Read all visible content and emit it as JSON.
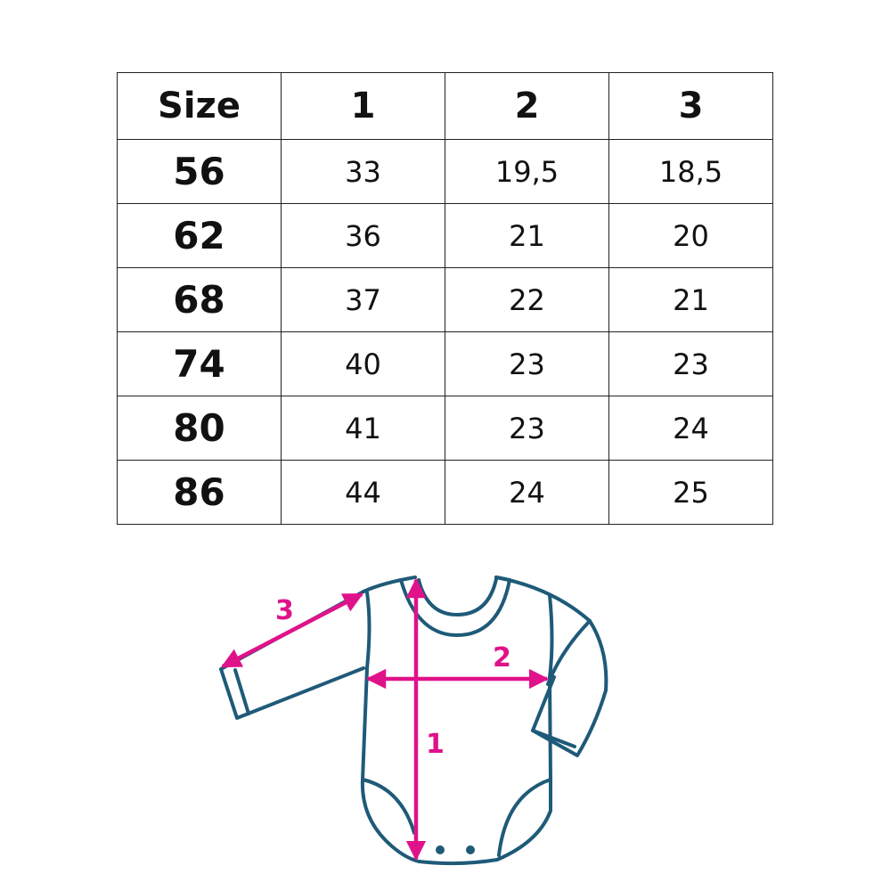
{
  "table": {
    "headers": [
      "Size",
      "1",
      "2",
      "3"
    ],
    "rows": [
      [
        "56",
        "33",
        "19,5",
        "18,5"
      ],
      [
        "62",
        "36",
        "21",
        "20"
      ],
      [
        "68",
        "37",
        "22",
        "21"
      ],
      [
        "74",
        "40",
        "23",
        "23"
      ],
      [
        "80",
        "41",
        "23",
        "24"
      ],
      [
        "86",
        "44",
        "24",
        "25"
      ]
    ]
  },
  "diagram": {
    "labels": {
      "length": "1",
      "chest": "2",
      "sleeve": "3"
    },
    "colors": {
      "outline": "#1f5a78",
      "arrows": "#e0128a"
    }
  }
}
